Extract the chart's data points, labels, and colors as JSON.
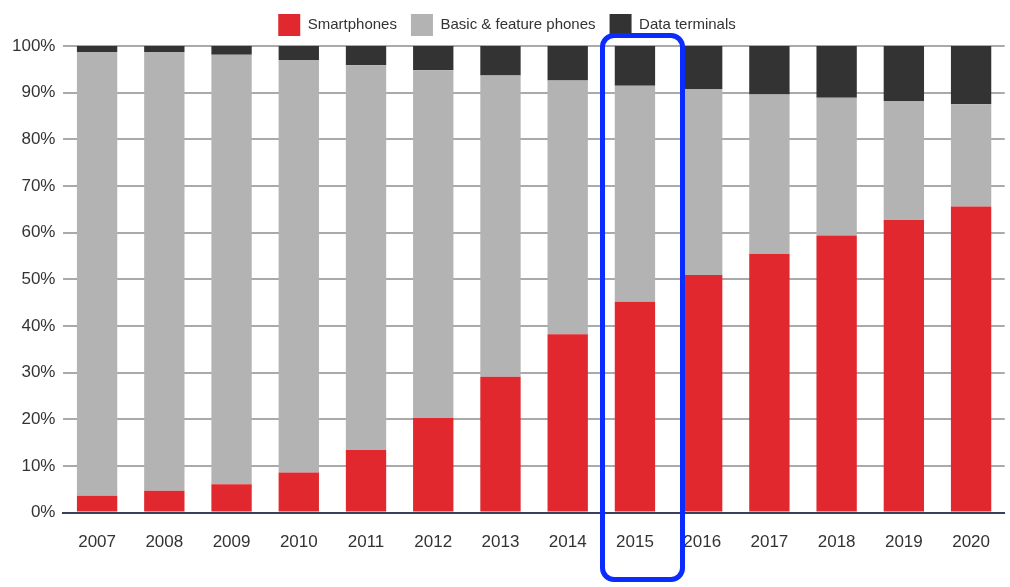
{
  "chart_data": {
    "type": "bar",
    "stacked": true,
    "categories": [
      "2007",
      "2008",
      "2009",
      "2010",
      "2011",
      "2012",
      "2013",
      "2014",
      "2015",
      "2016",
      "2017",
      "2018",
      "2019",
      "2020"
    ],
    "series": [
      {
        "name": "Smartphones",
        "color": "#e0282e",
        "values": [
          3.6,
          4.7,
          6.1,
          8.6,
          13.4,
          20.3,
          29.1,
          38.2,
          45.2,
          50.9,
          55.4,
          59.4,
          62.7,
          65.6
        ]
      },
      {
        "name": "Basic & feature phones",
        "color": "#b3b3b3",
        "values": [
          95.1,
          94.0,
          92.0,
          88.4,
          82.5,
          74.5,
          64.6,
          54.4,
          46.3,
          39.9,
          34.2,
          29.5,
          25.5,
          21.9
        ]
      },
      {
        "name": "Data terminals",
        "color": "#333333",
        "values": [
          1.3,
          1.3,
          1.9,
          3.0,
          4.1,
          5.2,
          6.3,
          7.4,
          8.5,
          9.2,
          10.4,
          11.1,
          11.8,
          12.5
        ]
      }
    ],
    "ylim": [
      0,
      100
    ],
    "yticks": [
      {
        "value": 0,
        "label": "0%"
      },
      {
        "value": 10,
        "label": "10%"
      },
      {
        "value": 20,
        "label": "20%"
      },
      {
        "value": 30,
        "label": "30%"
      },
      {
        "value": 40,
        "label": "40%"
      },
      {
        "value": 50,
        "label": "50%"
      },
      {
        "value": 60,
        "label": "60%"
      },
      {
        "value": 70,
        "label": "70%"
      },
      {
        "value": 80,
        "label": "80%"
      },
      {
        "value": 90,
        "label": "90%"
      },
      {
        "value": 100,
        "label": "100%"
      }
    ],
    "grid": "y",
    "legend": "top"
  }
}
